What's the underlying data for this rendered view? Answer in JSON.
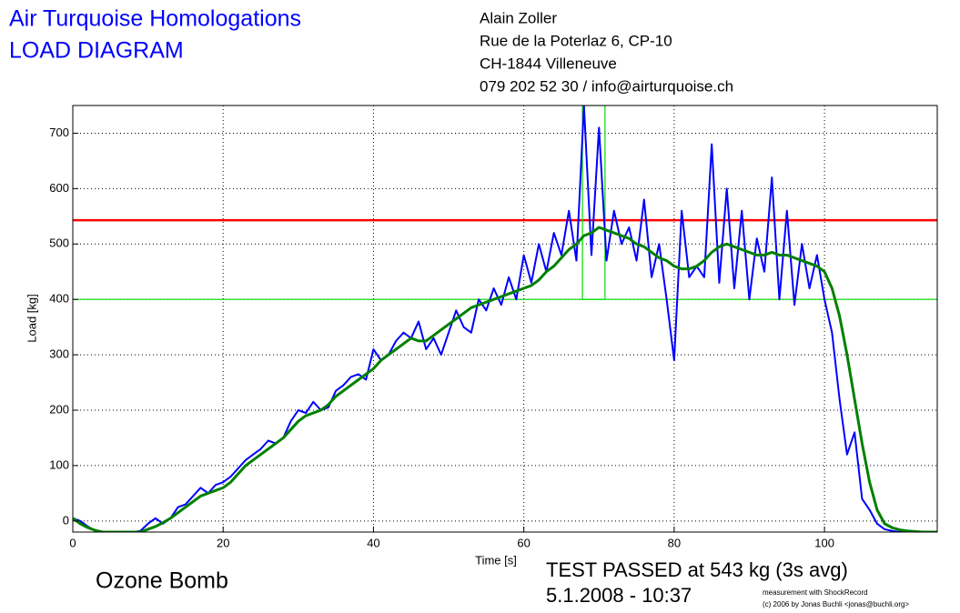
{
  "header": {
    "title": [
      "Air Turquoise Homologations",
      "LOAD DIAGRAM"
    ],
    "address": [
      "Alain Zoller",
      "Rue de la Poterlaz 6, CP-10",
      "CH-1844 Villeneuve",
      "079 202 52 30 / info@airturquoise.ch"
    ]
  },
  "footer": {
    "name": "Ozone Bomb",
    "result": "TEST PASSED at 543 kg (3s avg)",
    "date": "5.1.2008 - 10:37",
    "credit": [
      "measurement with ShockRecord",
      "(c) 2006 by Jonas Buchli <jonas@buchli.org>"
    ]
  },
  "chart_data": {
    "type": "line",
    "x_label": "Time [s]",
    "y_label": "Load [kg]",
    "xlim": [
      0,
      115
    ],
    "ylim": [
      -20,
      750
    ],
    "xticks": [
      0,
      20,
      40,
      60,
      80,
      100
    ],
    "yticks": [
      0,
      100,
      200,
      300,
      400,
      500,
      600,
      700
    ],
    "grid": true,
    "reference_lines": [
      {
        "value": 543,
        "color": "#ff0000"
      },
      {
        "value": 400,
        "color": "#00dd00"
      }
    ],
    "window": {
      "x": [
        67.8,
        70.8
      ],
      "y": [
        400,
        750
      ],
      "color": "#00dd00"
    },
    "x": [
      0,
      1,
      2,
      3,
      4,
      5,
      6,
      7,
      8,
      9,
      10,
      11,
      12,
      13,
      14,
      15,
      16,
      17,
      18,
      19,
      20,
      21,
      22,
      23,
      24,
      25,
      26,
      27,
      28,
      29,
      30,
      31,
      32,
      33,
      34,
      35,
      36,
      37,
      38,
      39,
      40,
      41,
      42,
      43,
      44,
      45,
      46,
      47,
      48,
      49,
      50,
      51,
      52,
      53,
      54,
      55,
      56,
      57,
      58,
      59,
      60,
      61,
      62,
      63,
      64,
      65,
      66,
      67,
      68,
      69,
      70,
      71,
      72,
      73,
      74,
      75,
      76,
      77,
      78,
      79,
      80,
      81,
      82,
      83,
      84,
      85,
      86,
      87,
      88,
      89,
      90,
      91,
      92,
      93,
      94,
      95,
      96,
      97,
      98,
      99,
      100,
      101,
      102,
      103,
      104,
      105,
      106,
      107,
      108,
      109,
      110,
      111,
      112,
      113,
      114,
      115
    ],
    "series": [
      {
        "color": "#0000ff",
        "values": [
          5,
          0,
          -10,
          -18,
          -20,
          -20,
          -20,
          -20,
          -20,
          -18,
          -5,
          5,
          -5,
          5,
          25,
          30,
          45,
          60,
          50,
          65,
          70,
          80,
          95,
          110,
          120,
          130,
          145,
          140,
          150,
          180,
          200,
          195,
          215,
          200,
          205,
          235,
          245,
          260,
          265,
          255,
          310,
          290,
          300,
          325,
          340,
          330,
          360,
          310,
          330,
          300,
          340,
          380,
          350,
          340,
          400,
          380,
          420,
          390,
          440,
          400,
          480,
          430,
          500,
          450,
          520,
          480,
          560,
          470,
          750,
          480,
          710,
          470,
          560,
          500,
          530,
          470,
          580,
          440,
          500,
          400,
          290,
          560,
          440,
          460,
          440,
          680,
          430,
          600,
          420,
          560,
          400,
          510,
          450,
          620,
          400,
          560,
          390,
          500,
          420,
          480,
          400,
          340,
          220,
          120,
          160,
          40,
          20,
          -5,
          -15,
          -18,
          -20,
          -20,
          -20,
          -20,
          -20,
          -20
        ]
      },
      {
        "color": "#008000",
        "values": [
          5,
          -5,
          -12,
          -17,
          -20,
          -20,
          -20,
          -20,
          -20,
          -20,
          -15,
          -10,
          -3,
          5,
          15,
          25,
          35,
          45,
          50,
          55,
          60,
          70,
          85,
          100,
          110,
          120,
          130,
          140,
          150,
          165,
          180,
          190,
          195,
          200,
          210,
          225,
          235,
          245,
          255,
          265,
          275,
          290,
          300,
          310,
          320,
          330,
          325,
          325,
          335,
          345,
          355,
          365,
          375,
          385,
          390,
          395,
          400,
          405,
          410,
          415,
          420,
          425,
          435,
          450,
          460,
          475,
          490,
          500,
          515,
          520,
          530,
          525,
          520,
          515,
          510,
          500,
          495,
          485,
          475,
          470,
          460,
          455,
          455,
          460,
          470,
          485,
          495,
          500,
          495,
          490,
          485,
          480,
          480,
          485,
          480,
          480,
          475,
          470,
          465,
          460,
          450,
          420,
          370,
          300,
          220,
          140,
          70,
          20,
          -5,
          -12,
          -16,
          -18,
          -19,
          -20,
          -20,
          -20
        ]
      }
    ]
  }
}
